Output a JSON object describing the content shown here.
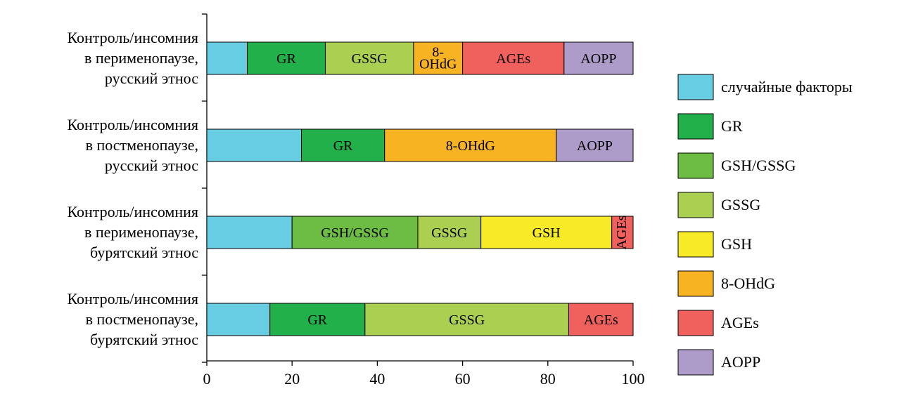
{
  "chart_data": {
    "type": "bar",
    "orientation": "horizontal",
    "stacked": true,
    "xlim": [
      0,
      100
    ],
    "x_ticks": [
      "0",
      "20",
      "40",
      "60",
      "80",
      "100"
    ],
    "grid": false,
    "legend_position": "right",
    "categories": [
      [
        "Контроль/инсомния",
        "в перименопаузе,",
        "русский этнос"
      ],
      [
        "Контроль/инсомния",
        "в постменопаузе,",
        "русский этнос"
      ],
      [
        "Контроль/инсомния",
        "в перименопаузе,",
        "бурятский этнос"
      ],
      [
        "Контроль/инсомния",
        "в постменопаузе,",
        "бурятский этнос"
      ]
    ],
    "legend": [
      {
        "name": "случайные факторы",
        "color": "#66cde3"
      },
      {
        "name": "GR",
        "color": "#22b04b"
      },
      {
        "name": "GSH/GSSG",
        "color": "#6dbd45"
      },
      {
        "name": "GSSG",
        "color": "#aacf51"
      },
      {
        "name": "GSH",
        "color": "#f7eb28"
      },
      {
        "name": "8-OHdG",
        "color": "#f8b323"
      },
      {
        "name": "AGEs",
        "color": "#f0605d"
      },
      {
        "name": "AOPP",
        "color": "#ad9cc9"
      }
    ],
    "bars": [
      {
        "segments": [
          {
            "series": "случайные факторы",
            "value": 9.5,
            "label": []
          },
          {
            "series": "GR",
            "value": 18.3,
            "label": [
              "GR"
            ]
          },
          {
            "series": "GSSG",
            "value": 20.7,
            "label": [
              "GSSG"
            ]
          },
          {
            "series": "8-OHdG",
            "value": 11.5,
            "label": [
              "8-",
              "OHdG"
            ]
          },
          {
            "series": "AGEs",
            "value": 23.8,
            "label": [
              "AGEs"
            ]
          },
          {
            "series": "AOPP",
            "value": 16.2,
            "label": [
              "AOPP"
            ]
          }
        ]
      },
      {
        "segments": [
          {
            "series": "случайные факторы",
            "value": 22.2,
            "label": []
          },
          {
            "series": "GR",
            "value": 19.5,
            "label": [
              "GR"
            ]
          },
          {
            "series": "8-OHdG",
            "value": 40.3,
            "label": [
              "8-OHdG"
            ]
          },
          {
            "series": "AOPP",
            "value": 18.0,
            "label": [
              "AOPP"
            ]
          }
        ]
      },
      {
        "segments": [
          {
            "series": "случайные факторы",
            "value": 20.0,
            "label": []
          },
          {
            "series": "GSH/GSSG",
            "value": 29.5,
            "label": [
              "GSH/GSSG"
            ]
          },
          {
            "series": "GSSG",
            "value": 14.8,
            "label": [
              "GSSG"
            ]
          },
          {
            "series": "GSH",
            "value": 30.7,
            "label": [
              "GSH"
            ]
          },
          {
            "series": "AGEs",
            "value": 5.0,
            "label": [
              "AGEs"
            ],
            "label_rotated": true
          }
        ]
      },
      {
        "segments": [
          {
            "series": "случайные факторы",
            "value": 14.8,
            "label": []
          },
          {
            "series": "GR",
            "value": 22.3,
            "label": [
              "GR"
            ]
          },
          {
            "series": "GSSG",
            "value": 47.8,
            "label": [
              "GSSG"
            ]
          },
          {
            "series": "AGEs",
            "value": 15.1,
            "label": [
              "AGEs"
            ]
          }
        ]
      }
    ]
  }
}
